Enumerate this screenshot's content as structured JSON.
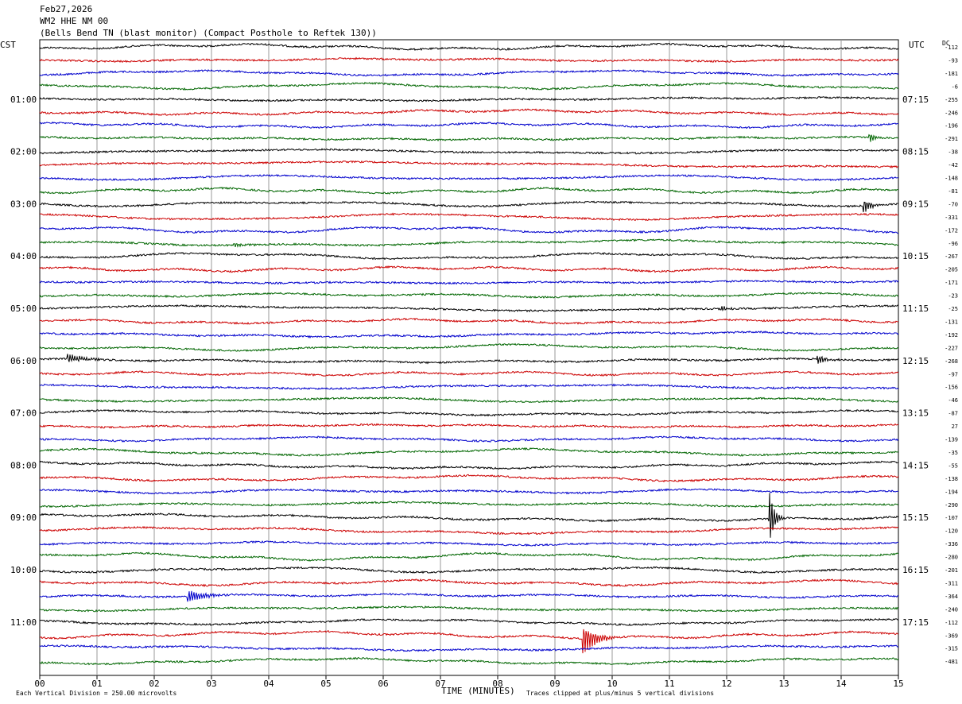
{
  "header": {
    "date": "Feb27,2026",
    "station": "WM2 HHE NM 00",
    "description": "(Bells Bend TN (blast monitor) (Compact Posthole to Reftek 130))"
  },
  "labels": {
    "left_timezone": "CST",
    "right_timezone": "UTC",
    "dc_label": "DC",
    "xlabel": "TIME (MINUTES)",
    "scale_note": "Each Vertical Division =  250.00 microvolts",
    "clip_note": "Traces clipped at plus/minus 5 vertical divisions"
  },
  "colors": {
    "trace_cycle": [
      "#000000",
      "#cc0000",
      "#0000cc",
      "#006600"
    ],
    "grid": "#999999"
  },
  "chart_data": {
    "type": "line",
    "title": "",
    "xlabel": "TIME (MINUTES)",
    "xlim": [
      0,
      15
    ],
    "x_ticks": [
      "00",
      "01",
      "02",
      "03",
      "04",
      "05",
      "06",
      "07",
      "08",
      "09",
      "10",
      "11",
      "12",
      "13",
      "14",
      "15"
    ],
    "left_hour_labels": [
      "01:00",
      "02:00",
      "03:00",
      "04:00",
      "05:00",
      "06:00",
      "07:00",
      "08:00",
      "09:00",
      "10:00",
      "11:00"
    ],
    "right_hour_labels": [
      "07:15",
      "08:15",
      "09:15",
      "10:15",
      "11:15",
      "12:15",
      "13:15",
      "14:15",
      "15:15",
      "16:15",
      "17:15"
    ],
    "hour_label_first_row": 4,
    "rows_per_hour": 4,
    "trace_count": 48,
    "dc_offsets": [
      -112,
      -93,
      -181,
      -6,
      -255,
      -246,
      -196,
      -291,
      -38,
      -42,
      -148,
      -81,
      -70,
      -331,
      -172,
      -96,
      -267,
      -205,
      -171,
      -23,
      -25,
      -131,
      -192,
      -227,
      -268,
      -97,
      -156,
      -46,
      -87,
      27,
      -139,
      -35,
      -55,
      -138,
      -194,
      -290,
      -107,
      -120,
      -336,
      -280,
      -201,
      -311,
      -364,
      -240,
      -112,
      -369,
      -315,
      -481
    ],
    "events": [
      {
        "row": 7,
        "minute": 14.5,
        "amp": 6,
        "dur": 0.15
      },
      {
        "row": 12,
        "minute": 14.4,
        "amp": 10,
        "dur": 0.2
      },
      {
        "row": 15,
        "minute": 3.4,
        "amp": 4,
        "dur": 0.3
      },
      {
        "row": 20,
        "minute": 11.9,
        "amp": 4,
        "dur": 0.2
      },
      {
        "row": 24,
        "minute": 0.5,
        "amp": 6,
        "dur": 0.5
      },
      {
        "row": 24,
        "minute": 13.6,
        "amp": 5,
        "dur": 0.3
      },
      {
        "row": 36,
        "minute": 12.75,
        "amp": 35,
        "dur": 0.15
      },
      {
        "row": 42,
        "minute": 2.6,
        "amp": 8,
        "dur": 0.5
      },
      {
        "row": 45,
        "minute": 9.5,
        "amp": 20,
        "dur": 0.4
      }
    ]
  }
}
